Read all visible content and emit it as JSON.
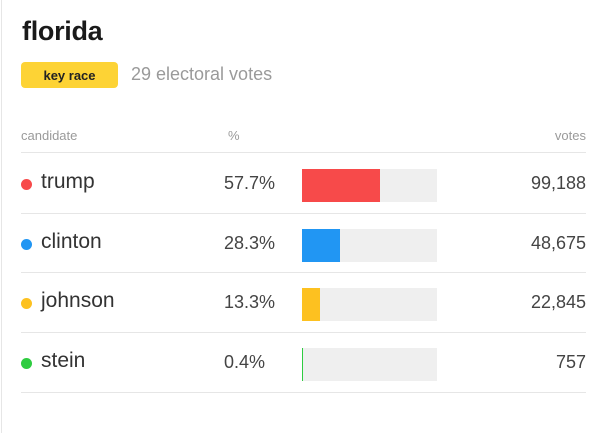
{
  "state": "florida",
  "badge": "key race",
  "electoral_votes_text": "29 electoral votes",
  "headers": {
    "candidate": "candidate",
    "pct": "%",
    "votes": "votes"
  },
  "candidates": [
    {
      "name": "trump",
      "pct_label": "57.7%",
      "pct": 57.7,
      "votes": "99,188",
      "color": "#f74a4a"
    },
    {
      "name": "clinton",
      "pct_label": "28.3%",
      "pct": 28.3,
      "votes": "48,675",
      "color": "#2196f3"
    },
    {
      "name": "johnson",
      "pct_label": "13.3%",
      "pct": 13.3,
      "votes": "22,845",
      "color": "#fdc120"
    },
    {
      "name": "stein",
      "pct_label": "0.4%",
      "pct": 0.4,
      "votes": "757",
      "color": "#2ecc40"
    }
  ]
}
